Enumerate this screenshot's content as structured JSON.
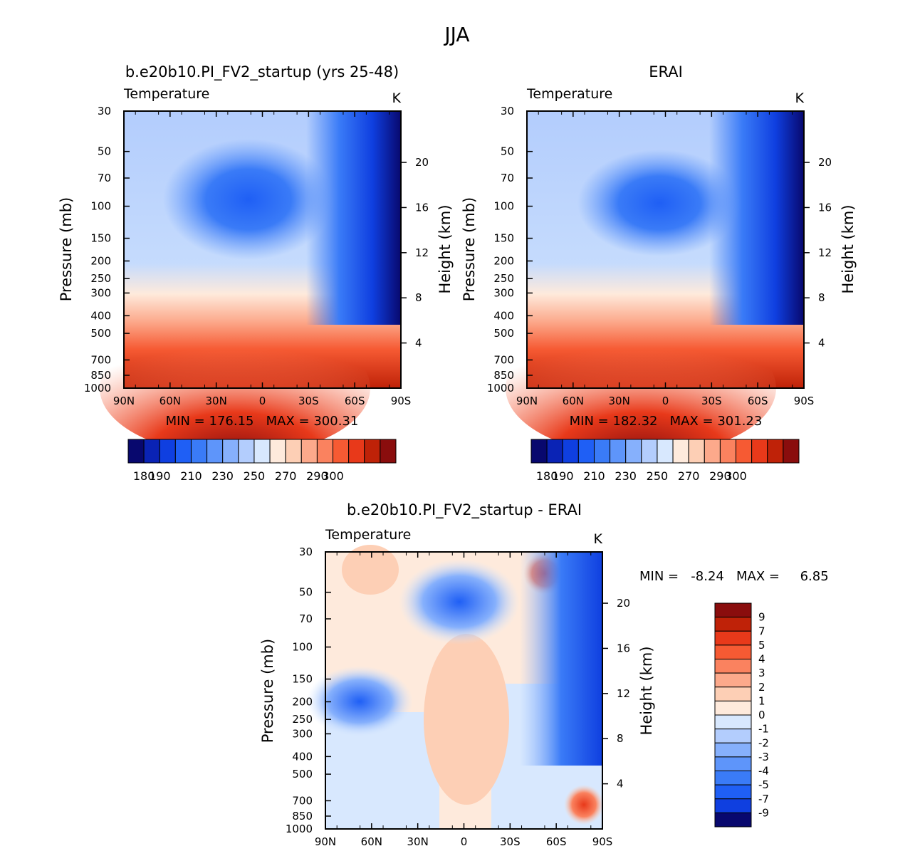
{
  "figure": {
    "title": "JJA"
  },
  "chart_data": [
    {
      "type": "heatmap",
      "id": "model",
      "title": "b.e20b10.PI_FV2_startup (yrs 25-48)",
      "left_label": "Temperature",
      "right_label": "K",
      "xlabel": "",
      "ylabel": "Pressure (mb)",
      "y2label": "Height (km)",
      "x_ticks": [
        "90N",
        "60N",
        "30N",
        "0",
        "30S",
        "60S",
        "90S"
      ],
      "y_ticks": [
        30,
        50,
        70,
        100,
        150,
        200,
        250,
        300,
        400,
        500,
        700,
        850,
        1000
      ],
      "y_range": [
        30,
        1000
      ],
      "y_scale": "log",
      "y2_ticks": [
        4,
        8,
        12,
        16,
        20
      ],
      "stats": "MIN = 176.15   MAX = 300.31",
      "colorbar": {
        "orientation": "horizontal",
        "levels": [
          180,
          190,
          200,
          210,
          220,
          230,
          240,
          250,
          260,
          270,
          280,
          290,
          300
        ],
        "tick_labels": [
          "180",
          "190",
          "210",
          "230",
          "250",
          "270",
          "290",
          "300"
        ],
        "colors": [
          "#08086e",
          "#0a23b5",
          "#0f3fe0",
          "#1f5ff5",
          "#3a7bf7",
          "#5e95fa",
          "#86b0fc",
          "#b3cdfd",
          "#d8e8fe",
          "#feeadc",
          "#fdcfb5",
          "#fca98b",
          "#fa825f",
          "#f65a33",
          "#e8391a",
          "#bf2208",
          "#8a0d0d"
        ]
      }
    },
    {
      "type": "heatmap",
      "id": "obs",
      "title": "ERAI",
      "left_label": "Temperature",
      "right_label": "K",
      "xlabel": "",
      "ylabel": "Pressure (mb)",
      "y2label": "Height (km)",
      "x_ticks": [
        "90N",
        "60N",
        "30N",
        "0",
        "30S",
        "60S",
        "90S"
      ],
      "y_ticks": [
        30,
        50,
        70,
        100,
        150,
        200,
        250,
        300,
        400,
        500,
        700,
        850,
        1000
      ],
      "y_range": [
        30,
        1000
      ],
      "y_scale": "log",
      "y2_ticks": [
        4,
        8,
        12,
        16,
        20
      ],
      "stats": "MIN = 182.32   MAX = 301.23",
      "colorbar": {
        "orientation": "horizontal",
        "levels": [
          180,
          190,
          200,
          210,
          220,
          230,
          240,
          250,
          260,
          270,
          280,
          290,
          300
        ],
        "tick_labels": [
          "180",
          "190",
          "210",
          "230",
          "250",
          "270",
          "290",
          "300"
        ],
        "colors": [
          "#08086e",
          "#0a23b5",
          "#0f3fe0",
          "#1f5ff5",
          "#3a7bf7",
          "#5e95fa",
          "#86b0fc",
          "#b3cdfd",
          "#d8e8fe",
          "#feeadc",
          "#fdcfb5",
          "#fca98b",
          "#fa825f",
          "#f65a33",
          "#e8391a",
          "#bf2208",
          "#8a0d0d"
        ]
      }
    },
    {
      "type": "heatmap",
      "id": "diff",
      "title": "b.e20b10.PI_FV2_startup - ERAI",
      "left_label": "Temperature",
      "right_label": "K",
      "xlabel": "",
      "ylabel": "Pressure (mb)",
      "y2label": "Height (km)",
      "x_ticks": [
        "90N",
        "60N",
        "30N",
        "0",
        "30S",
        "60S",
        "90S"
      ],
      "y_ticks": [
        30,
        50,
        70,
        100,
        150,
        200,
        250,
        300,
        400,
        500,
        700,
        850,
        1000
      ],
      "y_range": [
        30,
        1000
      ],
      "y_scale": "log",
      "y2_ticks": [
        4,
        8,
        12,
        16,
        20
      ],
      "stats": "MIN =   -8.24   MAX =     6.85",
      "colorbar": {
        "orientation": "vertical",
        "tick_labels": [
          "9",
          "7",
          "5",
          "4",
          "3",
          "2",
          "1",
          "0",
          "-1",
          "-2",
          "-3",
          "-4",
          "-5",
          "-7",
          "-9"
        ],
        "colors": [
          "#8a0d0d",
          "#bf2208",
          "#e8391a",
          "#f65a33",
          "#fa825f",
          "#fca98b",
          "#fdcfb5",
          "#feeadc",
          "#d8e8fe",
          "#b3cdfd",
          "#86b0fc",
          "#5e95fa",
          "#3a7bf7",
          "#1f5ff5",
          "#0f3fe0",
          "#08086e"
        ]
      }
    }
  ]
}
